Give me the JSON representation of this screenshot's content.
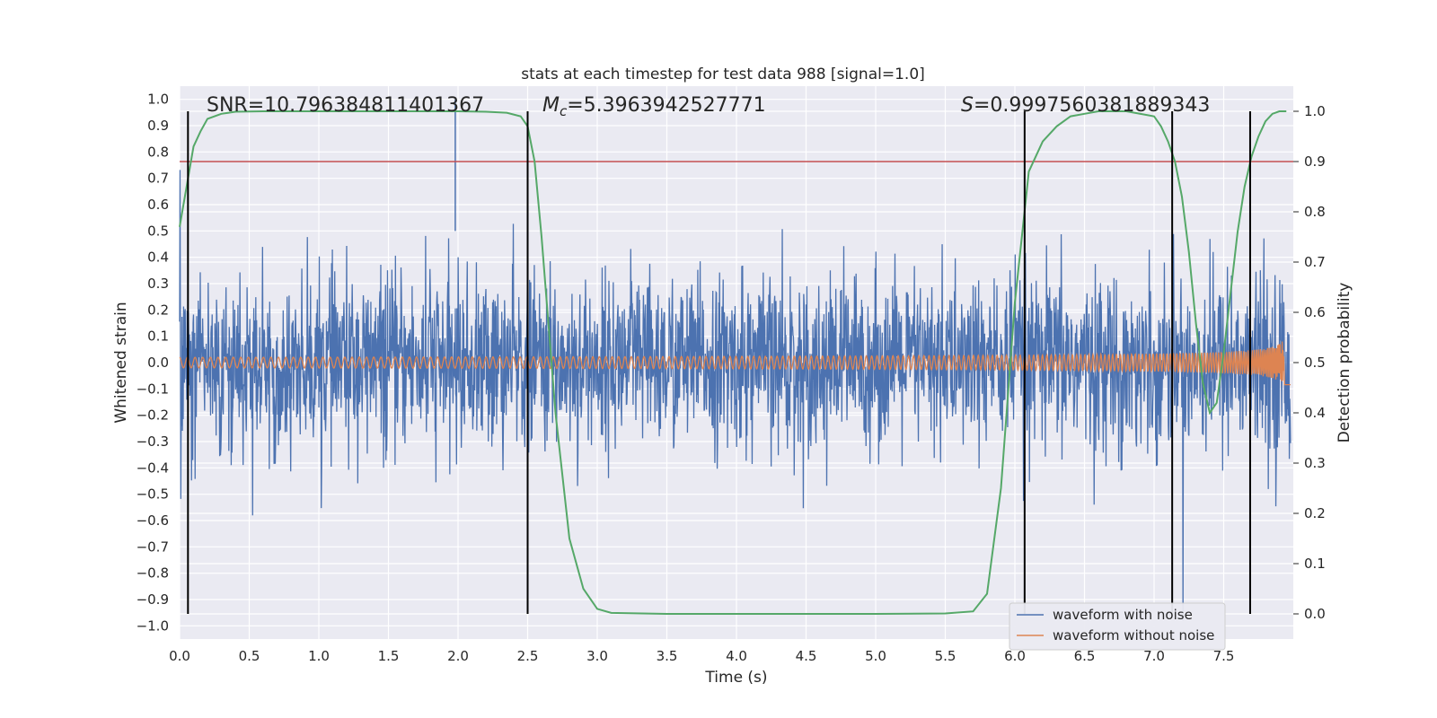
{
  "chart_data": {
    "type": "line",
    "title": "stats at each timestep for test data 988 [signal=1.0]",
    "xlabel": "Time (s)",
    "ylabel": "Whitened strain",
    "y2label": "Detection probability",
    "xlim": [
      0.0,
      8.0
    ],
    "ylim": [
      -1.05,
      1.05
    ],
    "y2lim": [
      -0.05,
      1.05
    ],
    "xticks": [
      "0.0",
      "0.5",
      "1.0",
      "1.5",
      "2.0",
      "2.5",
      "3.0",
      "3.5",
      "4.0",
      "4.5",
      "5.0",
      "5.5",
      "6.0",
      "6.5",
      "7.0",
      "7.5"
    ],
    "yticks": [
      "−1.0",
      "−0.9",
      "−0.8",
      "−0.7",
      "−0.6",
      "−0.5",
      "−0.4",
      "−0.3",
      "−0.2",
      "−0.1",
      "0.0",
      "0.1",
      "0.2",
      "0.3",
      "0.4",
      "0.5",
      "0.6",
      "0.7",
      "0.8",
      "0.9",
      "1.0"
    ],
    "y2ticks": [
      "0.0",
      "0.1",
      "0.2",
      "0.3",
      "0.4",
      "0.5",
      "0.6",
      "0.7",
      "0.8",
      "0.9",
      "1.0"
    ],
    "grid": true,
    "legend_position": "lower-right",
    "annotations": {
      "snr": "SNR=10.796384811401367",
      "mc_sym": "M",
      "mc_sub": "c",
      "mc_val": "=5.3963942527771",
      "s_sym": "S",
      "s_val": "=0.9997560381889343"
    },
    "series": [
      {
        "name": "waveform with noise",
        "color": "#4c72b0",
        "noise_rms": 0.16,
        "peak_abs": 1.0
      },
      {
        "name": "waveform without noise",
        "color": "#dd8452",
        "chirp_amplitude_start": 0.02,
        "chirp_amplitude_end": 0.3,
        "merger_time": 7.95
      }
    ],
    "threshold": {
      "axis": "secondary",
      "value": 0.9,
      "color": "#c44e52"
    },
    "detection_probability": {
      "axis": "secondary",
      "color": "#55a868",
      "x": [
        0.0,
        0.05,
        0.1,
        0.15,
        0.2,
        0.3,
        0.4,
        0.6,
        1.0,
        1.5,
        2.0,
        2.2,
        2.35,
        2.45,
        2.5,
        2.55,
        2.6,
        2.7,
        2.8,
        2.9,
        3.0,
        3.1,
        3.5,
        4.0,
        5.0,
        5.5,
        5.7,
        5.8,
        5.9,
        6.0,
        6.1,
        6.2,
        6.3,
        6.4,
        6.5,
        6.6,
        6.8,
        7.0,
        7.05,
        7.1,
        7.15,
        7.2,
        7.25,
        7.3,
        7.35,
        7.4,
        7.45,
        7.5,
        7.55,
        7.6,
        7.65,
        7.7,
        7.75,
        7.8,
        7.85,
        7.9,
        7.95
      ],
      "y": [
        0.77,
        0.85,
        0.93,
        0.96,
        0.985,
        0.995,
        0.999,
        1.0,
        1.0,
        1.0,
        1.0,
        0.999,
        0.997,
        0.99,
        0.97,
        0.9,
        0.75,
        0.4,
        0.15,
        0.05,
        0.01,
        0.002,
        0.0,
        0.0,
        0.0,
        0.001,
        0.005,
        0.04,
        0.25,
        0.62,
        0.88,
        0.94,
        0.97,
        0.99,
        0.995,
        1.0,
        1.0,
        0.99,
        0.97,
        0.94,
        0.9,
        0.83,
        0.72,
        0.58,
        0.46,
        0.4,
        0.42,
        0.52,
        0.64,
        0.76,
        0.85,
        0.91,
        0.95,
        0.98,
        0.995,
        1.0,
        1.0
      ]
    },
    "event_markers_x": [
      0.06,
      2.5,
      6.07,
      7.13,
      7.69
    ]
  }
}
